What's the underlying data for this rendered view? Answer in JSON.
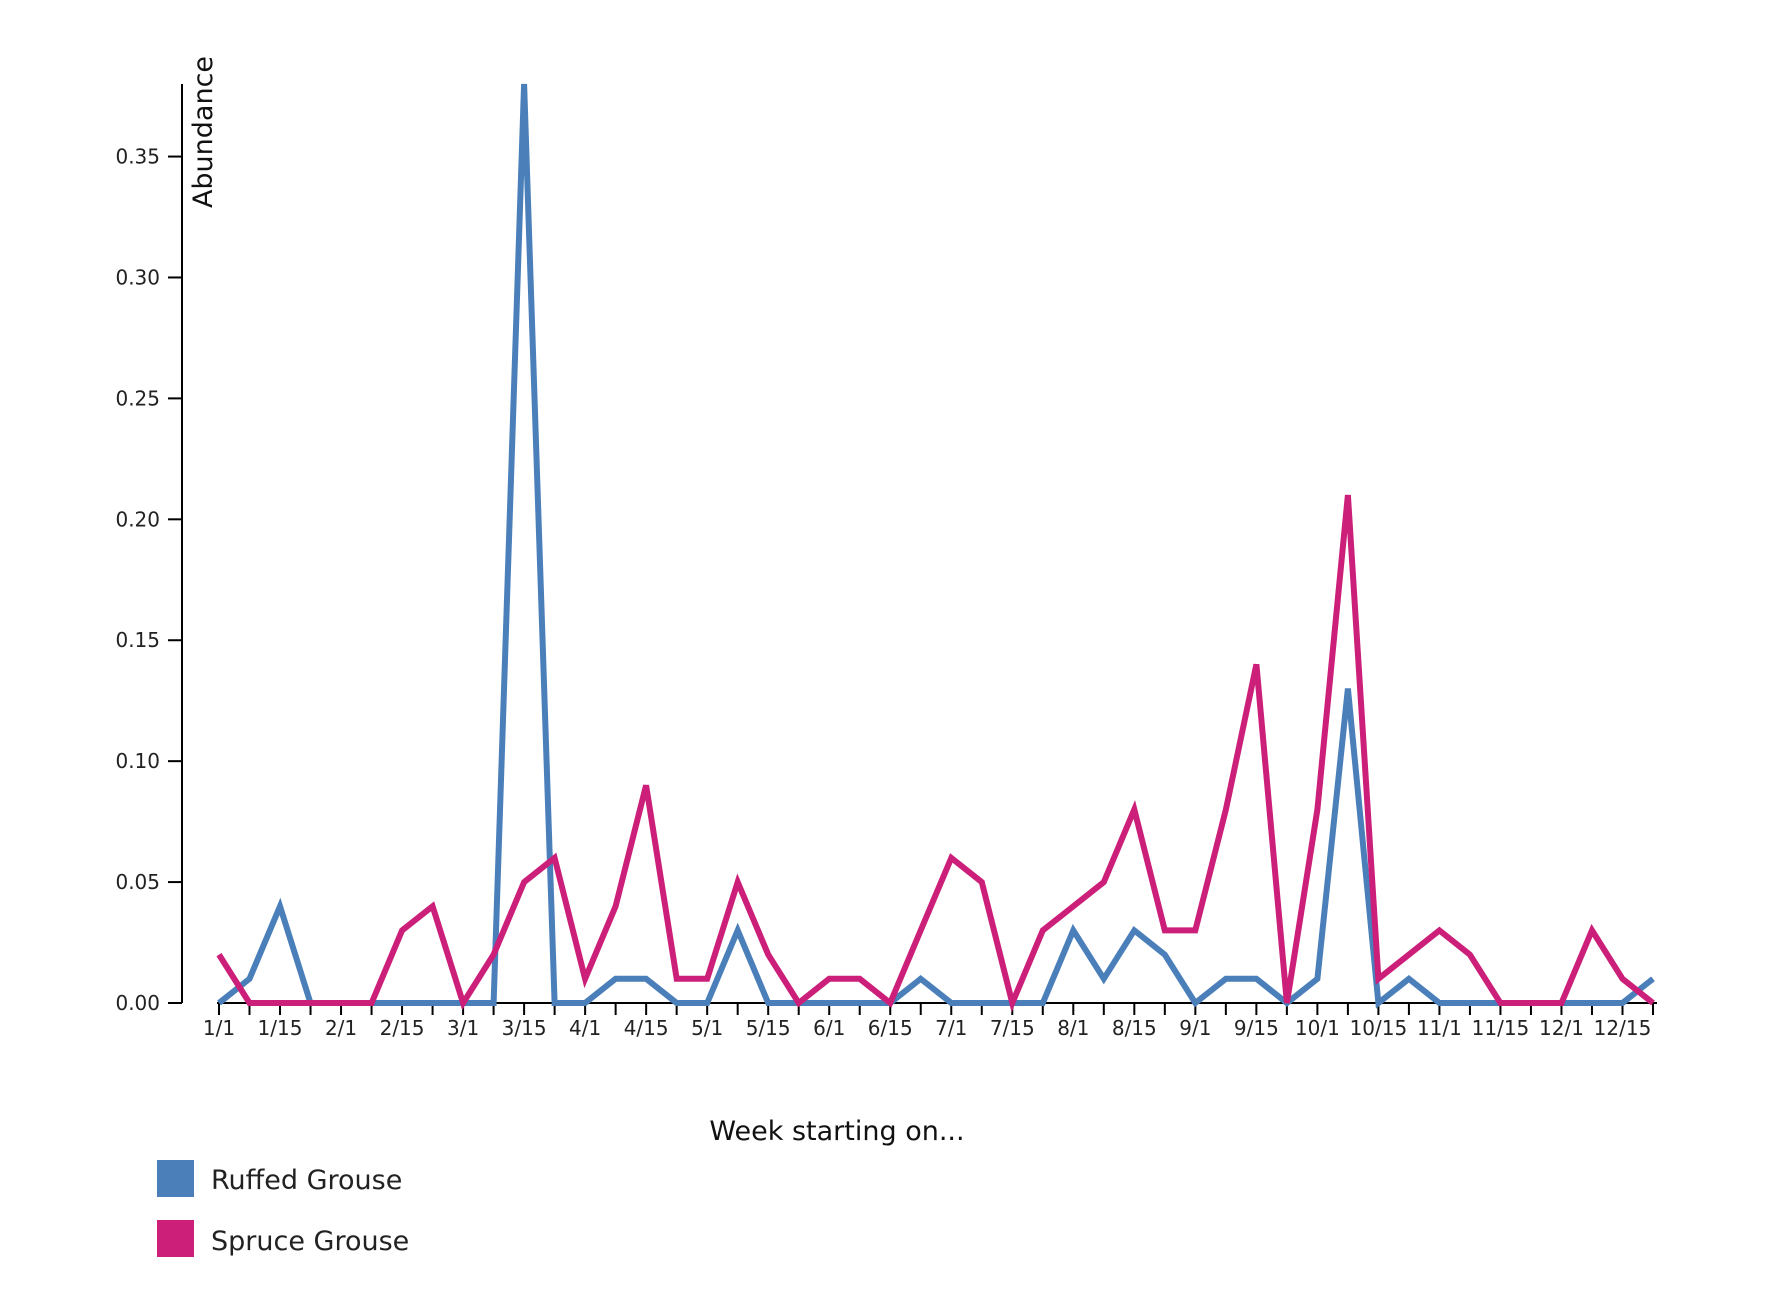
{
  "chart_data": {
    "type": "line",
    "ylabel": "Abundance",
    "xlabel": "Week starting on...",
    "ylim": [
      0,
      0.38
    ],
    "yticks": [
      0.0,
      0.05,
      0.1,
      0.15,
      0.2,
      0.25,
      0.3,
      0.35
    ],
    "ytick_labels": [
      "0.00",
      "0.05",
      "0.10",
      "0.15",
      "0.20",
      "0.25",
      "0.30",
      "0.35"
    ],
    "xtick_labels": [
      "1/1",
      "1/15",
      "2/1",
      "2/15",
      "3/1",
      "3/15",
      "4/1",
      "4/15",
      "5/1",
      "5/15",
      "6/1",
      "6/15",
      "7/1",
      "7/15",
      "8/1",
      "8/15",
      "9/1",
      "9/15",
      "10/1",
      "10/15",
      "11/1",
      "11/15",
      "12/1",
      "12/15"
    ],
    "xtick_positions": [
      0,
      2,
      4,
      6,
      8,
      10,
      12,
      14,
      16,
      18,
      20,
      22,
      24,
      26,
      28,
      30,
      32,
      34,
      36,
      38,
      40,
      42,
      44,
      46
    ],
    "grid": false,
    "legend": "bottom-left",
    "series": [
      {
        "name": "Ruffed Grouse",
        "color": "#4a7fba",
        "values": [
          0,
          0.01,
          0.04,
          0,
          0,
          0,
          0,
          0,
          0,
          0,
          0.38,
          0,
          0,
          0.01,
          0.01,
          0,
          0,
          0.03,
          0,
          0,
          0,
          0,
          0,
          0.01,
          0,
          0,
          0,
          0,
          0.03,
          0.01,
          0.03,
          0.02,
          0,
          0.01,
          0.01,
          0,
          0.01,
          0.13,
          0,
          0.01,
          0,
          0,
          0,
          0,
          0,
          0,
          0,
          0.01
        ]
      },
      {
        "name": "Spruce Grouse",
        "color": "#cc1f7a",
        "values": [
          0.02,
          0,
          0,
          0,
          0,
          0,
          0.03,
          0.04,
          0,
          0.02,
          0.05,
          0.06,
          0.01,
          0.04,
          0.09,
          0.01,
          0.01,
          0.05,
          0.02,
          0,
          0.01,
          0.01,
          0,
          0.03,
          0.06,
          0.05,
          0,
          0.03,
          0.04,
          0.05,
          0.08,
          0.03,
          0.03,
          0.08,
          0.14,
          0,
          0.08,
          0.21,
          0.01,
          0.02,
          0.03,
          0.02,
          0,
          0,
          0,
          0.03,
          0.01,
          0
        ]
      }
    ]
  }
}
